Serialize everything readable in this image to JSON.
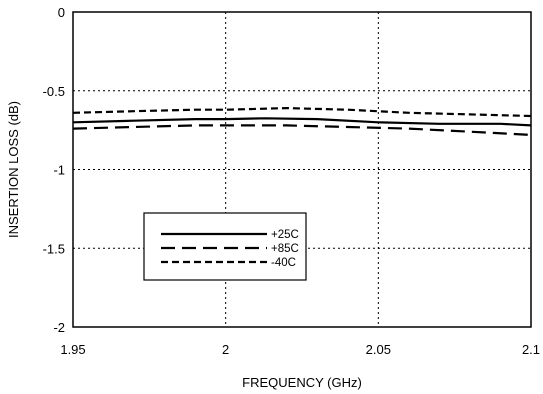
{
  "chart_data": {
    "type": "line",
    "title": "",
    "xlabel": "FREQUENCY (GHz)",
    "ylabel": "INSERTION LOSS (dB)",
    "xlim": [
      1.95,
      2.1
    ],
    "ylim": [
      -2,
      0
    ],
    "xticks": [
      1.95,
      2.0,
      2.05,
      2.1
    ],
    "xtick_labels": [
      "1.95",
      "2",
      "2.05",
      "2.1"
    ],
    "yticks": [
      0,
      -0.5,
      -1,
      -1.5,
      -2
    ],
    "ytick_labels": [
      "0",
      "-0.5",
      "-1",
      "-1.5",
      "-2"
    ],
    "grid": true,
    "legend_position": "lower-left",
    "series": [
      {
        "name": "+25C",
        "dash": "solid",
        "x": [
          1.95,
          1.97,
          1.99,
          2.0,
          2.013,
          2.03,
          2.05,
          2.07,
          2.09,
          2.1
        ],
        "y": [
          -0.7,
          -0.69,
          -0.68,
          -0.68,
          -0.675,
          -0.68,
          -0.7,
          -0.71,
          -0.71,
          -0.72
        ]
      },
      {
        "name": "+85C",
        "dash": "long-dash",
        "x": [
          1.95,
          1.97,
          1.99,
          2.0,
          2.02,
          2.04,
          2.06,
          2.08,
          2.1
        ],
        "y": [
          -0.74,
          -0.73,
          -0.72,
          -0.72,
          -0.72,
          -0.73,
          -0.74,
          -0.76,
          -0.78
        ]
      },
      {
        "name": "-40C",
        "dash": "short-dash",
        "x": [
          1.95,
          1.97,
          1.99,
          2.0,
          2.02,
          2.04,
          2.06,
          2.08,
          2.1
        ],
        "y": [
          -0.64,
          -0.63,
          -0.62,
          -0.62,
          -0.61,
          -0.62,
          -0.64,
          -0.65,
          -0.66
        ]
      }
    ]
  }
}
